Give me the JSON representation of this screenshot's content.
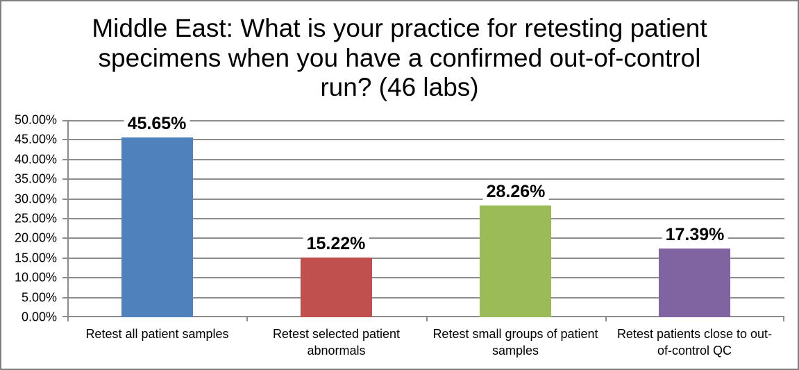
{
  "frame": {
    "background": "#FFFFFF",
    "border_color": "#7F7F7F"
  },
  "chart_data": {
    "type": "bar",
    "title": "Middle East: What is your practice for retesting patient specimens when you have a confirmed out-of-control run? (46 labs)",
    "title_lines": [
      "Middle East: What is your practice for retesting patient",
      "specimens when you have a confirmed out-of-control",
      "run? (46 labs)"
    ],
    "categories": [
      "Retest all patient samples",
      "Retest selected patient abnormals",
      "Retest small groups of patient samples",
      "Retest patients close to out-of-control QC"
    ],
    "category_lines": [
      [
        "Retest all patient samples"
      ],
      [
        "Retest selected patient",
        "abnormals"
      ],
      [
        "Retest small groups of patient",
        "samples"
      ],
      [
        "Retest patients close to out-",
        "of-control QC"
      ]
    ],
    "values": [
      45.65,
      15.22,
      28.26,
      17.39
    ],
    "data_labels": [
      "45.65%",
      "15.22%",
      "28.26%",
      "17.39%"
    ],
    "bar_colors": [
      "#4F81BD",
      "#C0504D",
      "#9BBB59",
      "#8064A2"
    ],
    "xlabel": "",
    "ylabel": "",
    "ylim": [
      0,
      50
    ],
    "y_tick_step": 5,
    "y_tick_labels": [
      "0.00%",
      "5.00%",
      "10.00%",
      "15.00%",
      "20.00%",
      "25.00%",
      "30.00%",
      "35.00%",
      "40.00%",
      "45.00%",
      "50.00%"
    ],
    "grid": true,
    "gridline_color": "#8C8C8C",
    "axis_color": "#8C8C8C",
    "text_color": "#000000",
    "legend": "none"
  }
}
